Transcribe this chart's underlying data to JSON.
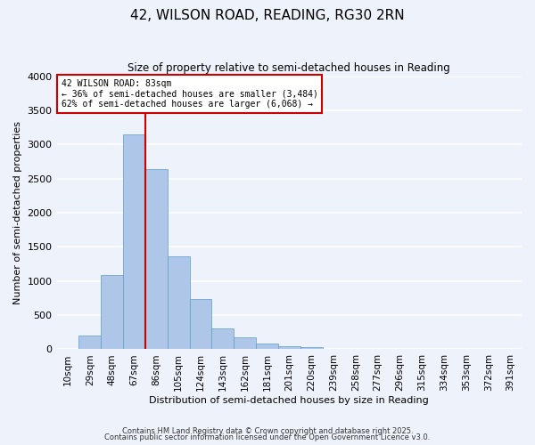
{
  "title": "42, WILSON ROAD, READING, RG30 2RN",
  "subtitle": "Size of property relative to semi-detached houses in Reading",
  "xlabel": "Distribution of semi-detached houses by size in Reading",
  "ylabel": "Number of semi-detached properties",
  "bin_labels": [
    "10sqm",
    "29sqm",
    "48sqm",
    "67sqm",
    "86sqm",
    "105sqm",
    "124sqm",
    "143sqm",
    "162sqm",
    "181sqm",
    "201sqm",
    "220sqm",
    "239sqm",
    "258sqm",
    "277sqm",
    "296sqm",
    "315sqm",
    "334sqm",
    "353sqm",
    "372sqm",
    "391sqm"
  ],
  "bar_values": [
    0,
    200,
    1090,
    3150,
    2640,
    1360,
    740,
    310,
    180,
    80,
    50,
    30,
    0,
    0,
    0,
    0,
    0,
    0,
    0,
    0,
    0
  ],
  "bar_color": "#aec6e8",
  "bar_edge_color": "#5a9ec9",
  "vline_x": 3.5,
  "vline_color": "#cc0000",
  "annotation_title": "42 WILSON ROAD: 83sqm",
  "annotation_line1": "← 36% of semi-detached houses are smaller (3,484)",
  "annotation_line2": "62% of semi-detached houses are larger (6,068) →",
  "annotation_box_color": "#ffffff",
  "annotation_box_edge_color": "#cc0000",
  "ylim": [
    0,
    4000
  ],
  "yticks": [
    0,
    500,
    1000,
    1500,
    2000,
    2500,
    3000,
    3500,
    4000
  ],
  "background_color": "#eef2fb",
  "grid_color": "#ffffff",
  "footer_line1": "Contains HM Land Registry data © Crown copyright and database right 2025.",
  "footer_line2": "Contains public sector information licensed under the Open Government Licence v3.0."
}
